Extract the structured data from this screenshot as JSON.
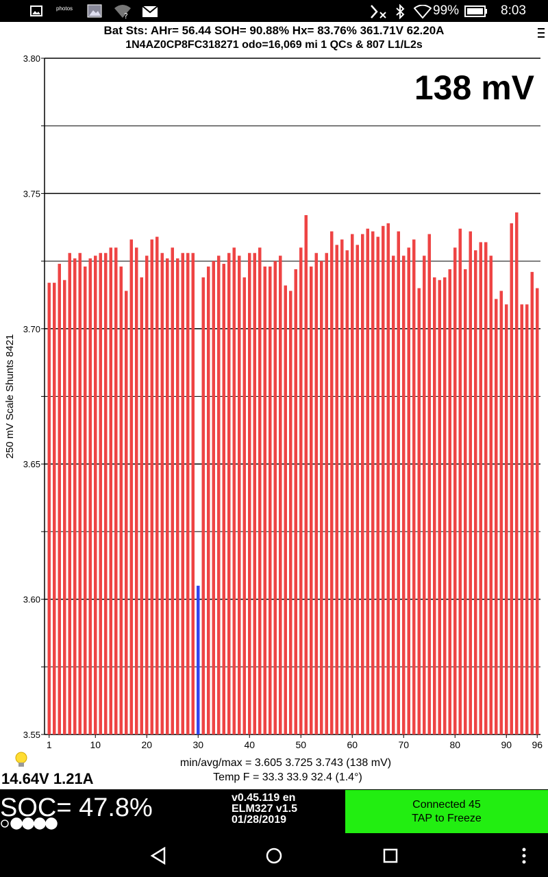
{
  "status_bar": {
    "battery": "99%",
    "time": "8:03",
    "icons": [
      "image-icon",
      "photos-icon",
      "gallery-icon",
      "wifi-unknown-icon",
      "mail-icon",
      "signal-off-icon",
      "bluetooth-icon",
      "wifi-icon",
      "battery-icon"
    ],
    "photos_label": "photos"
  },
  "header": {
    "line1": "Bat Sts:  AHr= 56.44  SOH= 90.88%   Hx= 83.76%   361.71V 62.20A",
    "line2": "1N4AZ0CP8FC318271 odo=16,069 mi  1 QCs & 807 L1/L2s",
    "menu_icon": "overflow-menu-icon"
  },
  "chart_data": {
    "type": "bar",
    "spread_label": "138 mV",
    "ylabel": "250 mV Scale   Shunts 8421",
    "ylim": [
      3.55,
      3.8
    ],
    "yticks": [
      "3.80",
      "3.75",
      "3.70",
      "3.65",
      "3.60",
      "3.55"
    ],
    "xticks": [
      "1",
      "10",
      "20",
      "30",
      "40",
      "50",
      "60",
      "70",
      "80",
      "90",
      "96"
    ],
    "highlight_color": "#3344ee",
    "bar_color": "#ee4444",
    "min_cell": 30,
    "categories": [
      1,
      2,
      3,
      4,
      5,
      6,
      7,
      8,
      9,
      10,
      11,
      12,
      13,
      14,
      15,
      16,
      17,
      18,
      19,
      20,
      21,
      22,
      23,
      24,
      25,
      26,
      27,
      28,
      29,
      30,
      31,
      32,
      33,
      34,
      35,
      36,
      37,
      38,
      39,
      40,
      41,
      42,
      43,
      44,
      45,
      46,
      47,
      48,
      49,
      50,
      51,
      52,
      53,
      54,
      55,
      56,
      57,
      58,
      59,
      60,
      61,
      62,
      63,
      64,
      65,
      66,
      67,
      68,
      69,
      70,
      71,
      72,
      73,
      74,
      75,
      76,
      77,
      78,
      79,
      80,
      81,
      82,
      83,
      84,
      85,
      86,
      87,
      88,
      89,
      90,
      91,
      92,
      93,
      94,
      95,
      96
    ],
    "values": [
      3.717,
      3.717,
      3.724,
      3.718,
      3.728,
      3.726,
      3.728,
      3.723,
      3.726,
      3.727,
      3.728,
      3.728,
      3.73,
      3.73,
      3.723,
      3.714,
      3.733,
      3.73,
      3.719,
      3.727,
      3.733,
      3.734,
      3.728,
      3.726,
      3.73,
      3.726,
      3.728,
      3.728,
      3.728,
      3.605,
      3.719,
      3.723,
      3.725,
      3.727,
      3.724,
      3.728,
      3.73,
      3.727,
      3.719,
      3.728,
      3.728,
      3.73,
      3.723,
      3.723,
      3.725,
      3.727,
      3.716,
      3.714,
      3.722,
      3.73,
      3.742,
      3.723,
      3.728,
      3.725,
      3.728,
      3.736,
      3.731,
      3.733,
      3.729,
      3.735,
      3.731,
      3.735,
      3.737,
      3.736,
      3.734,
      3.738,
      3.739,
      3.727,
      3.736,
      3.727,
      3.73,
      3.733,
      3.715,
      3.727,
      3.735,
      3.719,
      3.718,
      3.719,
      3.722,
      3.73,
      3.737,
      3.722,
      3.736,
      3.729,
      3.732,
      3.732,
      3.727,
      3.711,
      3.714,
      3.709,
      3.739,
      3.743,
      3.709,
      3.709,
      3.721,
      3.715
    ],
    "stats_line": "min/avg/max = 3.605 3.725 3.743  (138 mV)",
    "temp_line": "Temp F = 33.3  33.9  32.4  (1.4°)"
  },
  "aux_voltage": "14.64V 1.21A",
  "soc": "SOC= 47.8%",
  "soc_dots": [
    "empty",
    "filled",
    "filled",
    "filled",
    "filled"
  ],
  "version": {
    "line1": "v0.45.119 en",
    "line2": "ELM327 v1.5",
    "line3": "01/28/2019"
  },
  "connection": {
    "line1": "Connected 45",
    "line2": "TAP to Freeze",
    "color": "#22ee11"
  },
  "nav_icons": [
    "back-icon",
    "home-icon",
    "recents-icon",
    "more-options-icon"
  ]
}
